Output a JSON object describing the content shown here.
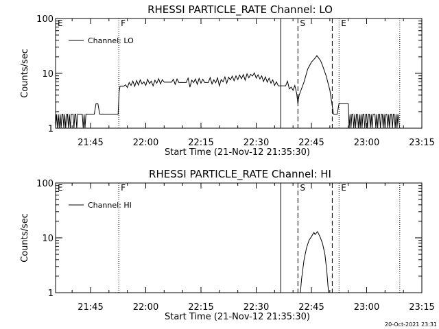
{
  "footer": {
    "timestamp": "20-Oct-2021 23:31"
  },
  "chart_data": [
    {
      "type": "line",
      "title": "RHESSI PARTICLE_RATE Channel: LO",
      "xlabel": "Start Time (21-Nov-12 21:35:30)",
      "ylabel": "Counts/sec",
      "y_scale": "log",
      "ylim": [
        1,
        100
      ],
      "xlim": [
        "21:35:30",
        "23:15:00"
      ],
      "x_ticks": [
        "21:45",
        "22:00",
        "22:15",
        "22:30",
        "22:45",
        "23:00",
        "23:15"
      ],
      "y_ticks": [
        "1",
        "10",
        "100"
      ],
      "legend": {
        "placement": "top-left",
        "entries": [
          "Channel: LO"
        ]
      },
      "markers": [
        {
          "label": "E",
          "time": "21:35:30",
          "style": "dotted"
        },
        {
          "label": "F",
          "time": "21:52:40",
          "style": "dotted"
        },
        {
          "label": "",
          "time": "22:36:40",
          "style": "solid"
        },
        {
          "label": "S",
          "time": "22:41:20",
          "style": "dashed"
        },
        {
          "label": "",
          "time": "22:50:40",
          "style": "dashed"
        },
        {
          "label": "E",
          "time": "22:52:30",
          "style": "dotted"
        },
        {
          "label": "",
          "time": "23:09:00",
          "style": "dotted"
        }
      ],
      "series": [
        {
          "name": "Channel: LO",
          "points": [
            [
              "21:35:30",
              1
            ],
            [
              "21:35:45",
              1.8
            ],
            [
              "21:36:00",
              1
            ],
            [
              "21:36:15",
              1.8
            ],
            [
              "21:36:30",
              1
            ],
            [
              "21:36:45",
              1.8
            ],
            [
              "21:37:00",
              1
            ],
            [
              "21:37:15",
              1.8
            ],
            [
              "21:37:30",
              1.8
            ],
            [
              "21:37:45",
              1
            ],
            [
              "21:38:00",
              1.8
            ],
            [
              "21:38:15",
              1
            ],
            [
              "21:38:30",
              1.8
            ],
            [
              "21:38:45",
              1.8
            ],
            [
              "21:39:00",
              1
            ],
            [
              "21:39:15",
              1.8
            ],
            [
              "21:39:30",
              1
            ],
            [
              "21:39:45",
              1.8
            ],
            [
              "21:40:00",
              1.8
            ],
            [
              "21:40:15",
              1.8
            ],
            [
              "21:40:30",
              1
            ],
            [
              "21:40:45",
              1.8
            ],
            [
              "21:41:00",
              1.8
            ],
            [
              "21:41:15",
              1
            ],
            [
              "21:41:30",
              1.8
            ],
            [
              "21:41:45",
              1.8
            ],
            [
              "21:42:00",
              1.8
            ],
            [
              "21:42:15",
              1.8
            ],
            [
              "21:42:30",
              1.8
            ],
            [
              "21:42:45",
              1.8
            ],
            [
              "21:43:00",
              1
            ],
            [
              "21:43:15",
              1.8
            ],
            [
              "21:43:30",
              1
            ],
            [
              "21:43:45",
              1.8
            ],
            [
              "21:44:00",
              1.8
            ],
            [
              "21:44:15",
              1.8
            ],
            [
              "21:44:30",
              1.8
            ],
            [
              "21:44:45",
              1.8
            ],
            [
              "21:45:00",
              1.8
            ],
            [
              "21:45:15",
              1.8
            ],
            [
              "21:45:30",
              1.8
            ],
            [
              "21:46:00",
              1.8
            ],
            [
              "21:46:30",
              2.8
            ],
            [
              "21:47:00",
              2.8
            ],
            [
              "21:47:30",
              1.8
            ],
            [
              "21:49:00",
              1.8
            ],
            [
              "21:51:00",
              1.8
            ],
            [
              "21:52:30",
              1.8
            ],
            [
              "21:52:45",
              4.5
            ],
            [
              "21:53:00",
              5.8
            ],
            [
              "21:54:00",
              5.8
            ],
            [
              "21:54:30",
              6.2
            ],
            [
              "21:55:00",
              5.5
            ],
            [
              "21:55:30",
              6.8
            ],
            [
              "21:56:00",
              6.0
            ],
            [
              "21:56:30",
              7.2
            ],
            [
              "21:57:00",
              5.8
            ],
            [
              "21:57:30",
              7.4
            ],
            [
              "21:58:00",
              6.1
            ],
            [
              "21:58:30",
              7.6
            ],
            [
              "21:59:00",
              6.4
            ],
            [
              "21:59:30",
              7.0
            ],
            [
              "22:00:00",
              6.0
            ],
            [
              "22:00:30",
              7.8
            ],
            [
              "22:01:00",
              6.5
            ],
            [
              "22:01:30",
              7.2
            ],
            [
              "22:02:00",
              5.9
            ],
            [
              "22:02:30",
              7.5
            ],
            [
              "22:03:00",
              6.6
            ],
            [
              "22:03:30",
              8.0
            ],
            [
              "22:04:00",
              6.4
            ],
            [
              "22:04:30",
              7.7
            ],
            [
              "22:05:00",
              6.9
            ],
            [
              "22:06:00",
              6.9
            ],
            [
              "22:07:00",
              6.9
            ],
            [
              "22:07:30",
              7.8
            ],
            [
              "22:08:00",
              6.3
            ],
            [
              "22:08:30",
              7.9
            ],
            [
              "22:09:00",
              6.8
            ],
            [
              "22:10:00",
              6.8
            ],
            [
              "22:11:00",
              6.8
            ],
            [
              "22:11:30",
              8.2
            ],
            [
              "22:12:00",
              5.6
            ],
            [
              "22:12:30",
              7.5
            ],
            [
              "22:13:00",
              6.8
            ],
            [
              "22:13:30",
              7.9
            ],
            [
              "22:14:00",
              6.3
            ],
            [
              "22:14:30",
              8.1
            ],
            [
              "22:15:00",
              6.6
            ],
            [
              "22:15:30",
              7.8
            ],
            [
              "22:16:00",
              6.8
            ],
            [
              "22:17:00",
              6.8
            ],
            [
              "22:17:30",
              8.4
            ],
            [
              "22:18:00",
              6.4
            ],
            [
              "22:18:30",
              7.6
            ],
            [
              "22:19:00",
              6.7
            ],
            [
              "22:19:30",
              8.3
            ],
            [
              "22:20:00",
              5.9
            ],
            [
              "22:20:30",
              7.7
            ],
            [
              "22:21:00",
              7.0
            ],
            [
              "22:21:30",
              8.6
            ],
            [
              "22:22:00",
              6.6
            ],
            [
              "22:22:30",
              8.5
            ],
            [
              "22:23:00",
              7.6
            ],
            [
              "22:23:30",
              8.9
            ],
            [
              "22:24:00",
              7.3
            ],
            [
              "22:24:30",
              9.0
            ],
            [
              "22:25:00",
              7.7
            ],
            [
              "22:25:30",
              9.3
            ],
            [
              "22:26:00",
              8.0
            ],
            [
              "22:26:30",
              9.5
            ],
            [
              "22:27:00",
              7.5
            ],
            [
              "22:27:30",
              9.8
            ],
            [
              "22:28:00",
              8.3
            ],
            [
              "22:28:30",
              9.6
            ],
            [
              "22:29:00",
              8.9
            ],
            [
              "22:29:30",
              10.2
            ],
            [
              "22:30:00",
              8.2
            ],
            [
              "22:30:30",
              9.4
            ],
            [
              "22:31:00",
              7.9
            ],
            [
              "22:31:30",
              9.0
            ],
            [
              "22:32:00",
              7.1
            ],
            [
              "22:32:30",
              8.6
            ],
            [
              "22:33:00",
              6.9
            ],
            [
              "22:33:30",
              8.2
            ],
            [
              "22:34:00",
              6.6
            ],
            [
              "22:34:30",
              7.6
            ],
            [
              "22:35:00",
              6.0
            ],
            [
              "22:35:30",
              7.0
            ],
            [
              "22:36:00",
              5.9
            ],
            [
              "22:37:00",
              5.9
            ],
            [
              "22:38:00",
              5.9
            ],
            [
              "22:38:30",
              7.2
            ],
            [
              "22:39:00",
              5.2
            ],
            [
              "22:39:30",
              5.6
            ],
            [
              "22:40:00",
              4.9
            ],
            [
              "22:40:30",
              6.0
            ],
            [
              "22:41:00",
              4.3
            ],
            [
              "22:41:20",
              2.8
            ],
            [
              "22:41:40",
              4.0
            ],
            [
              "22:42:00",
              4.6
            ],
            [
              "22:43:00",
              7.0
            ],
            [
              "22:44:00",
              12
            ],
            [
              "22:45:00",
              16
            ],
            [
              "22:46:00",
              19
            ],
            [
              "22:46:30",
              21
            ],
            [
              "22:47:00",
              19
            ],
            [
              "22:47:30",
              17
            ],
            [
              "22:48:00",
              14
            ],
            [
              "22:49:00",
              9.0
            ],
            [
              "22:50:00",
              5.0
            ],
            [
              "22:50:30",
              3.0
            ],
            [
              "22:51:00",
              1.8
            ],
            [
              "22:52:00",
              1.8
            ],
            [
              "22:52:30",
              2.8
            ],
            [
              "22:54:00",
              2.8
            ],
            [
              "22:55:00",
              2.8
            ],
            [
              "22:55:15",
              1
            ],
            [
              "22:55:30",
              1.8
            ],
            [
              "22:55:45",
              1
            ],
            [
              "22:56:00",
              1.8
            ],
            [
              "22:56:15",
              1.8
            ],
            [
              "22:56:30",
              1
            ],
            [
              "22:56:45",
              1.8
            ],
            [
              "22:57:00",
              1
            ],
            [
              "22:57:15",
              1.8
            ],
            [
              "22:57:30",
              1.8
            ],
            [
              "22:57:45",
              1
            ],
            [
              "22:58:00",
              1.8
            ],
            [
              "22:58:15",
              1
            ],
            [
              "22:58:30",
              1.8
            ],
            [
              "22:58:45",
              1
            ],
            [
              "22:59:00",
              1.8
            ],
            [
              "22:59:15",
              1.8
            ],
            [
              "22:59:30",
              1
            ],
            [
              "22:59:45",
              1.8
            ],
            [
              "23:00:00",
              1.8
            ],
            [
              "23:00:15",
              1
            ],
            [
              "23:00:30",
              1.8
            ],
            [
              "23:00:45",
              1.8
            ],
            [
              "23:01:00",
              1
            ],
            [
              "23:01:15",
              1.8
            ],
            [
              "23:01:30",
              1
            ],
            [
              "23:01:45",
              1.8
            ],
            [
              "23:02:00",
              1.8
            ],
            [
              "23:02:15",
              1.8
            ],
            [
              "23:02:30",
              1
            ],
            [
              "23:02:45",
              1.8
            ],
            [
              "23:03:00",
              1
            ],
            [
              "23:03:15",
              1.8
            ],
            [
              "23:03:30",
              1.8
            ],
            [
              "23:03:45",
              1
            ],
            [
              "23:04:00",
              1.8
            ],
            [
              "23:04:15",
              1.8
            ],
            [
              "23:04:30",
              1
            ],
            [
              "23:04:45",
              1.8
            ],
            [
              "23:05:00",
              1
            ],
            [
              "23:05:15",
              1.8
            ],
            [
              "23:05:30",
              1.8
            ],
            [
              "23:05:45",
              1
            ],
            [
              "23:06:00",
              1.8
            ],
            [
              "23:06:15",
              1
            ],
            [
              "23:06:30",
              1.8
            ],
            [
              "23:06:45",
              1.8
            ],
            [
              "23:07:00",
              1
            ],
            [
              "23:07:15",
              1.8
            ],
            [
              "23:07:30",
              1.8
            ],
            [
              "23:07:45",
              1
            ],
            [
              "23:08:00",
              1.8
            ],
            [
              "23:08:15",
              1
            ],
            [
              "23:08:30",
              1.8
            ],
            [
              "23:09:00",
              1
            ]
          ]
        }
      ]
    },
    {
      "type": "line",
      "title": "RHESSI PARTICLE_RATE Channel: HI",
      "xlabel": "Start Time (21-Nov-12 21:35:30)",
      "ylabel": "Counts/sec",
      "y_scale": "log",
      "ylim": [
        1,
        100
      ],
      "xlim": [
        "21:35:30",
        "23:15:00"
      ],
      "x_ticks": [
        "21:45",
        "22:00",
        "22:15",
        "22:30",
        "22:45",
        "23:00",
        "23:15"
      ],
      "y_ticks": [
        "1",
        "10",
        "100"
      ],
      "legend": {
        "placement": "top-left",
        "entries": [
          "Channel: HI"
        ]
      },
      "markers": [
        {
          "label": "E",
          "time": "21:35:30",
          "style": "dotted"
        },
        {
          "label": "F",
          "time": "21:52:40",
          "style": "dotted"
        },
        {
          "label": "",
          "time": "22:36:40",
          "style": "solid"
        },
        {
          "label": "S",
          "time": "22:41:20",
          "style": "dashed"
        },
        {
          "label": "",
          "time": "22:50:40",
          "style": "dashed"
        },
        {
          "label": "E",
          "time": "22:52:30",
          "style": "dotted"
        },
        {
          "label": "",
          "time": "23:09:00",
          "style": "dotted"
        }
      ],
      "series": [
        {
          "name": "Channel: HI",
          "points": [
            [
              "22:42:00",
              1
            ],
            [
              "22:42:20",
              1.8
            ],
            [
              "22:43:00",
              4.0
            ],
            [
              "22:43:40",
              6.5
            ],
            [
              "22:44:20",
              9.0
            ],
            [
              "22:45:00",
              10.5
            ],
            [
              "22:45:40",
              12.5
            ],
            [
              "22:46:00",
              11.5
            ],
            [
              "22:46:40",
              13.0
            ],
            [
              "22:47:20",
              10.5
            ],
            [
              "22:48:00",
              8.0
            ],
            [
              "22:48:40",
              5.0
            ],
            [
              "22:49:10",
              2.5
            ],
            [
              "22:49:40",
              1
            ]
          ]
        }
      ]
    }
  ]
}
